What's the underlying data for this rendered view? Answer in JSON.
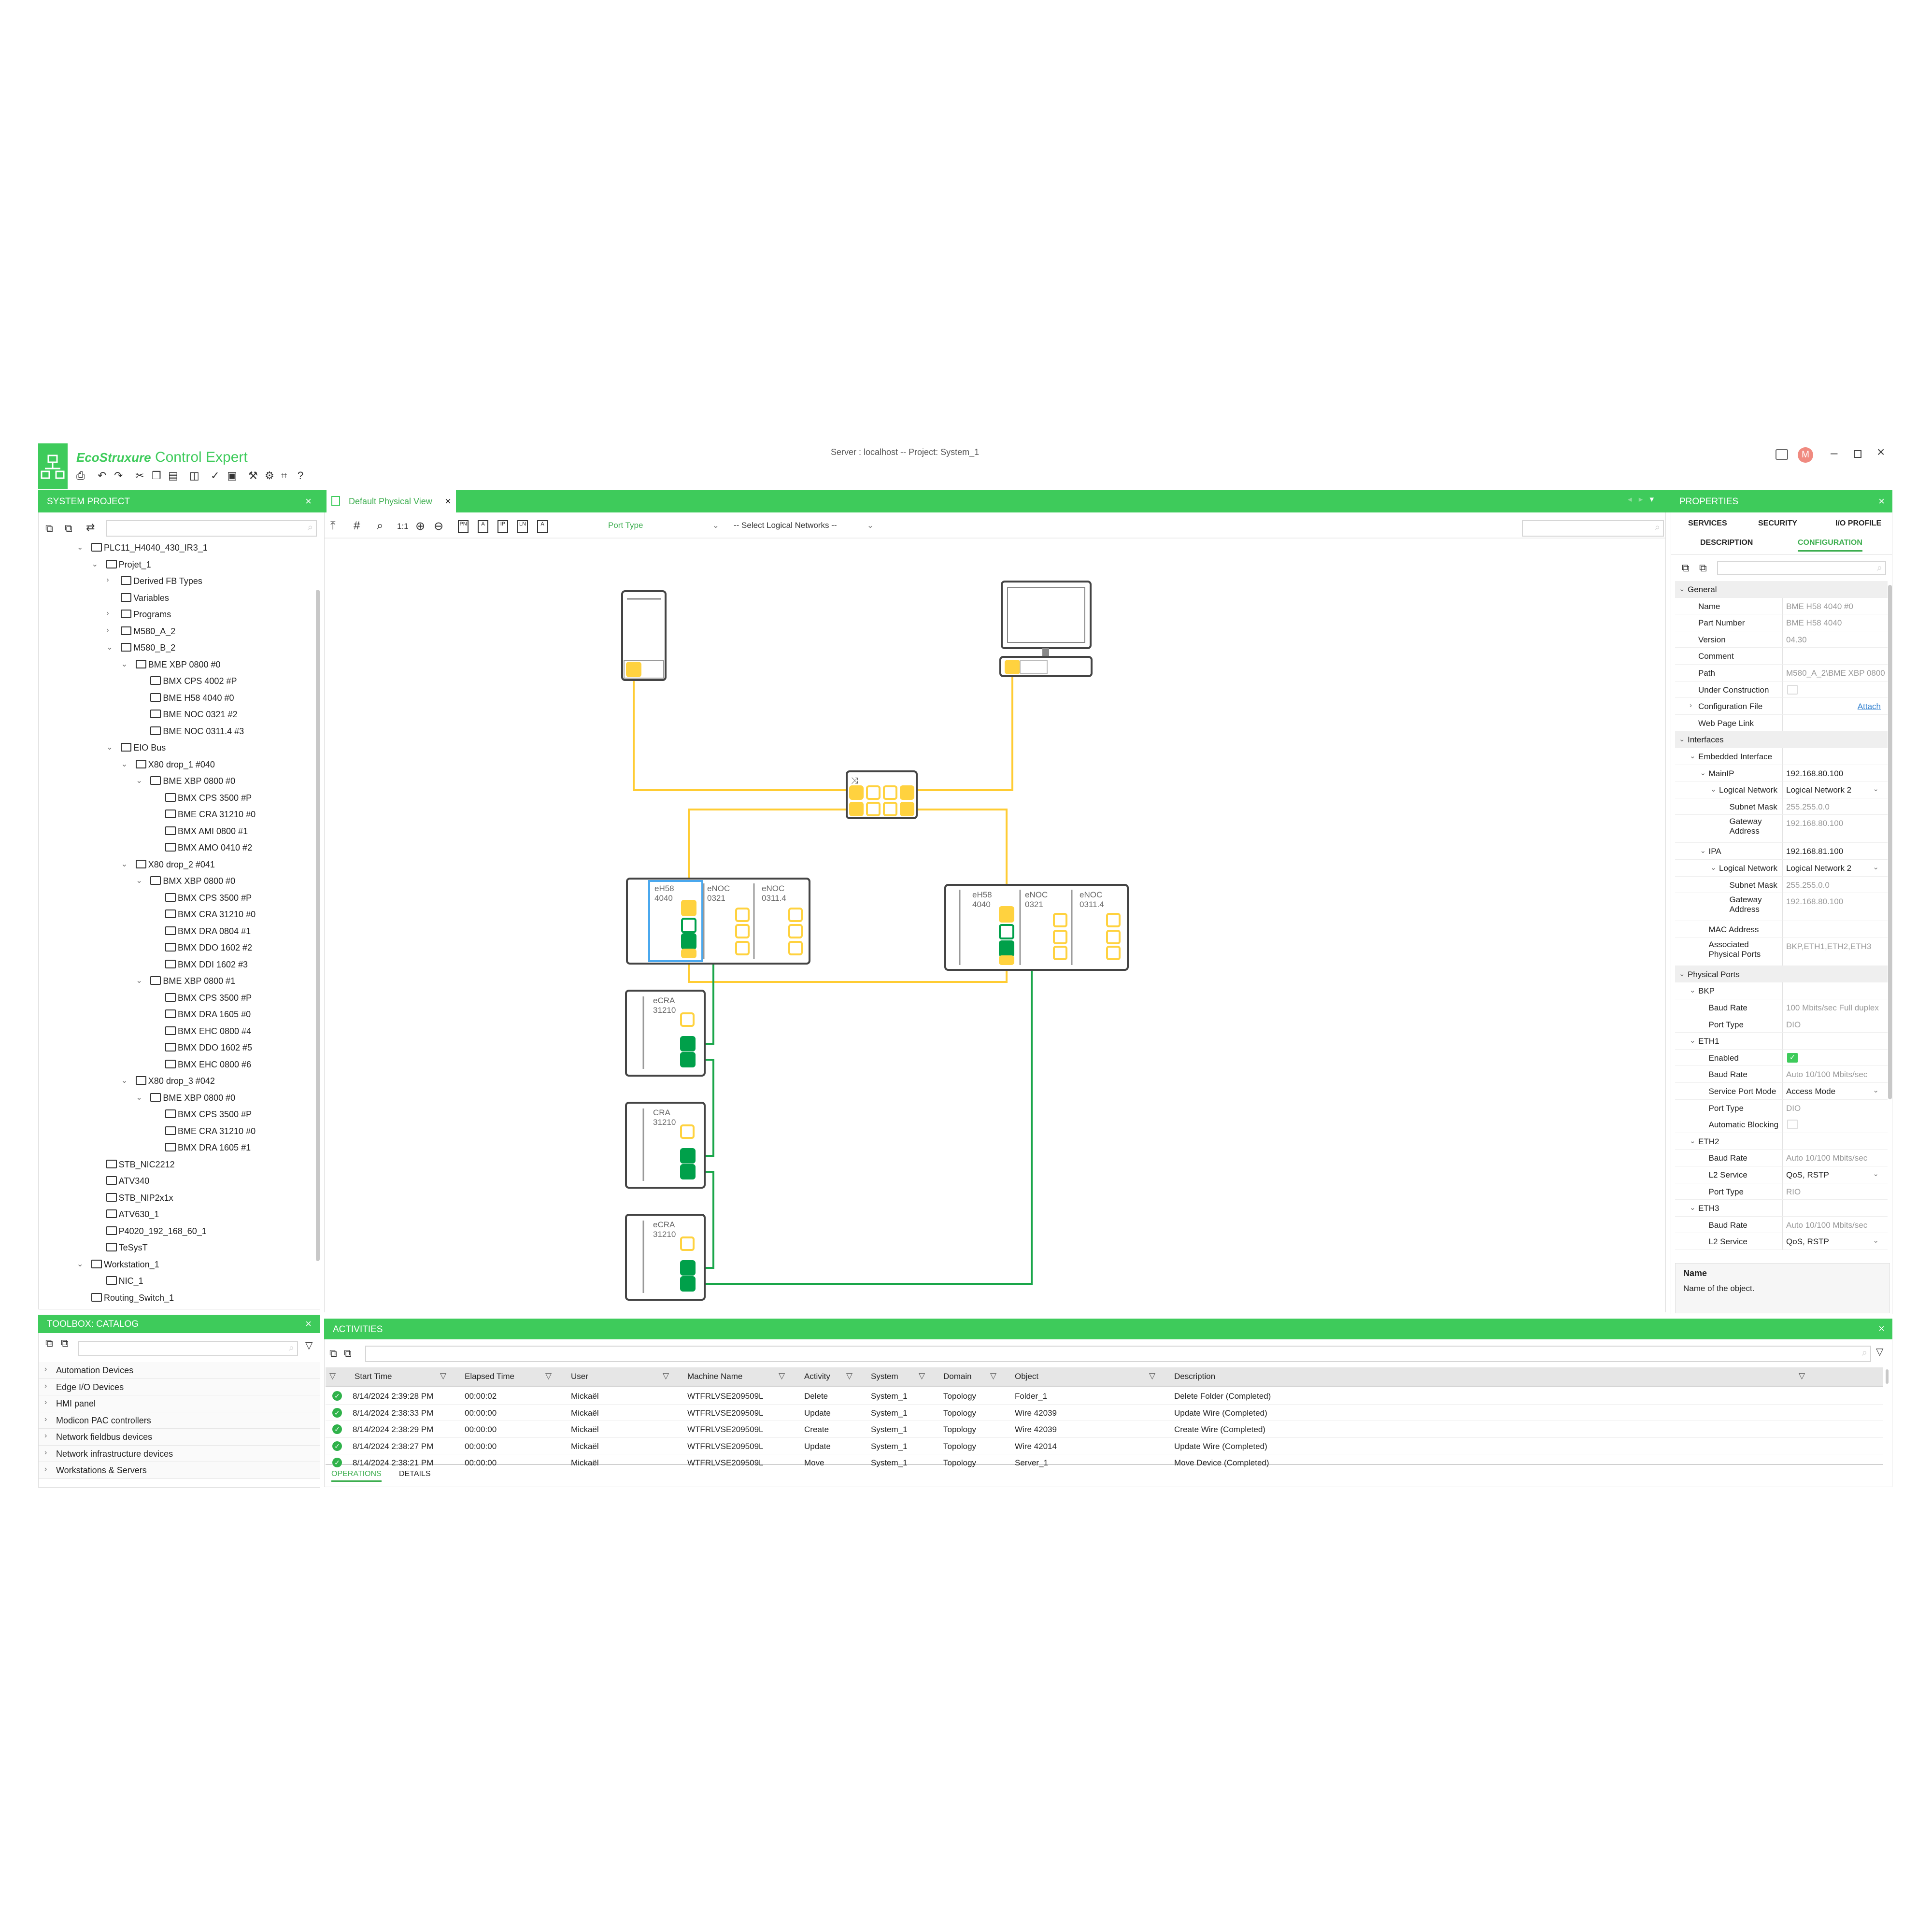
{
  "app": {
    "brand": "EcoStruxure",
    "product": "Control Expert",
    "server_info": "Server : localhost -- Project: System_1",
    "user_initial": "M",
    "colors": {
      "accent": "#3ecb5b",
      "avatar": "#f08a80",
      "port_yellow": "#ffd23f",
      "port_green": "#00a04a",
      "selection_blue": "#4aa8ee"
    },
    "toolbar_icons": [
      "print-icon",
      "undo-icon",
      "redo-icon",
      "cut-icon",
      "copy-icon",
      "paste-icon",
      "layout-icon",
      "check-icon",
      "deploy-icon",
      "tools-icon",
      "settings-icon",
      "fit-icon",
      "help-icon"
    ]
  },
  "system_project": {
    "title": "SYSTEM PROJECT",
    "tree": [
      {
        "level": 0,
        "exp": "v",
        "icon": "folder",
        "label": "PLC11_H4040_430_IR3_1"
      },
      {
        "level": 1,
        "exp": "v",
        "icon": "project",
        "label": "Projet_1"
      },
      {
        "level": 2,
        "exp": ">",
        "icon": "fb",
        "label": "Derived FB Types"
      },
      {
        "level": 2,
        "exp": "",
        "icon": "variables",
        "label": "Variables"
      },
      {
        "level": 2,
        "exp": ">",
        "icon": "programs",
        "label": "Programs"
      },
      {
        "level": 2,
        "exp": ">",
        "icon": "controller",
        "label": "M580_A_2"
      },
      {
        "level": 2,
        "exp": "v",
        "icon": "controller",
        "label": "M580_B_2"
      },
      {
        "level": 3,
        "exp": "v",
        "icon": "rack",
        "label": "BME XBP 0800 #0"
      },
      {
        "level": 4,
        "exp": "",
        "icon": "module",
        "label": "BMX CPS 4002 #P"
      },
      {
        "level": 4,
        "exp": "",
        "icon": "cpu",
        "label": "BME H58 4040 #0"
      },
      {
        "level": 4,
        "exp": "",
        "icon": "cpu",
        "label": "BME NOC 0321 #2"
      },
      {
        "level": 4,
        "exp": "",
        "icon": "cpu",
        "label": "BME NOC 0311.4 #3"
      },
      {
        "level": 2,
        "exp": "v",
        "icon": "bus",
        "label": "EIO Bus"
      },
      {
        "level": 3,
        "exp": "v",
        "icon": "controller",
        "label": "X80 drop_1 #040"
      },
      {
        "level": 4,
        "exp": "v",
        "icon": "rack",
        "label": "BME XBP 0800 #0"
      },
      {
        "level": 5,
        "exp": "",
        "icon": "module",
        "label": "BMX CPS 3500 #P"
      },
      {
        "level": 5,
        "exp": "",
        "icon": "cpu",
        "label": "BME CRA 31210 #0"
      },
      {
        "level": 5,
        "exp": "",
        "icon": "io",
        "label": "BMX AMI 0800 #1"
      },
      {
        "level": 5,
        "exp": "",
        "icon": "io",
        "label": "BMX AMO 0410 #2"
      },
      {
        "level": 3,
        "exp": "v",
        "icon": "controller",
        "label": "X80 drop_2 #041"
      },
      {
        "level": 4,
        "exp": "v",
        "icon": "rack",
        "label": "BMX XBP 0800 #0"
      },
      {
        "level": 5,
        "exp": "",
        "icon": "module",
        "label": "BMX CPS 3500 #P"
      },
      {
        "level": 5,
        "exp": "",
        "icon": "cpu",
        "label": "BMX CRA 31210 #0"
      },
      {
        "level": 5,
        "exp": "",
        "icon": "io",
        "label": "BMX DRA 0804 #1"
      },
      {
        "level": 5,
        "exp": "",
        "icon": "io",
        "label": "BMX DDO 1602 #2"
      },
      {
        "level": 5,
        "exp": "",
        "icon": "io",
        "label": "BMX DDI 1602 #3"
      },
      {
        "level": 4,
        "exp": "v",
        "icon": "rack",
        "label": "BME XBP 0800 #1"
      },
      {
        "level": 5,
        "exp": "",
        "icon": "module",
        "label": "BMX CPS 3500 #P"
      },
      {
        "level": 5,
        "exp": "",
        "icon": "io",
        "label": "BMX DRA 1605 #0"
      },
      {
        "level": 5,
        "exp": "",
        "icon": "io",
        "label": "BMX EHC 0800 #4"
      },
      {
        "level": 5,
        "exp": "",
        "icon": "io",
        "label": "BMX DDO 1602 #5"
      },
      {
        "level": 5,
        "exp": "",
        "icon": "io",
        "label": "BMX EHC 0800 #6"
      },
      {
        "level": 3,
        "exp": "v",
        "icon": "controller",
        "label": "X80 drop_3 #042"
      },
      {
        "level": 4,
        "exp": "v",
        "icon": "rack",
        "label": "BME XBP 0800 #0"
      },
      {
        "level": 5,
        "exp": "",
        "icon": "module",
        "label": "BMX CPS 3500 #P"
      },
      {
        "level": 5,
        "exp": "",
        "icon": "cpu",
        "label": "BME CRA 31210 #0"
      },
      {
        "level": 5,
        "exp": "",
        "icon": "io",
        "label": "BMX DRA 1605 #1"
      },
      {
        "level": 1,
        "exp": "",
        "icon": "device",
        "label": "STB_NIC2212"
      },
      {
        "level": 1,
        "exp": "",
        "icon": "device",
        "label": "ATV340"
      },
      {
        "level": 1,
        "exp": "",
        "icon": "device",
        "label": "STB_NIP2x1x"
      },
      {
        "level": 1,
        "exp": "",
        "icon": "drive",
        "label": "ATV630_1"
      },
      {
        "level": 1,
        "exp": "",
        "icon": "device",
        "label": "P4020_192_168_60_1"
      },
      {
        "level": 1,
        "exp": "",
        "icon": "device",
        "label": "TeSysT"
      },
      {
        "level": 0,
        "exp": "v",
        "icon": "workstation",
        "label": "Workstation_1"
      },
      {
        "level": 1,
        "exp": "",
        "icon": "nic",
        "label": "NIC_1"
      },
      {
        "level": 0,
        "exp": "",
        "icon": "switch",
        "label": "Routing_Switch_1"
      }
    ]
  },
  "toolbox": {
    "title": "TOOLBOX: CATALOG",
    "items": [
      "Automation Devices",
      "Edge I/O Devices",
      "HMI panel",
      "Modicon PAC controllers",
      "Network fieldbus devices",
      "Network infrastructure devices",
      "Workstations & Servers"
    ]
  },
  "editor": {
    "tab_label": "Default Physical View",
    "port_type": "Port Type",
    "logical_networks": "-- Select Logical Networks --",
    "zoom_1to1": "1:1",
    "tool_labels": [
      "PN",
      "A",
      "IP",
      "LN",
      "A"
    ]
  },
  "diagram": {
    "racks": [
      {
        "modules": [
          [
            "eH58",
            "4040"
          ],
          [
            "eNOC",
            "0321"
          ],
          [
            "eNOC",
            "0311.4"
          ]
        ],
        "selected_module": 0
      },
      {
        "modules": [
          [
            "eH58",
            "4040"
          ],
          [
            "eNOC",
            "0321"
          ],
          [
            "eNOC",
            "0311.4"
          ]
        ]
      }
    ],
    "drops": [
      [
        "eCRA",
        "31210"
      ],
      [
        "CRA",
        "31210"
      ],
      [
        "eCRA",
        "31210"
      ]
    ]
  },
  "properties": {
    "title": "PROPERTIES",
    "tabs_row1": [
      "SERVICES",
      "SECURITY",
      "I/O PROFILE"
    ],
    "tabs_row2": [
      "DESCRIPTION",
      "CONFIGURATION"
    ],
    "active_tab": "CONFIGURATION",
    "rows": [
      {
        "sec": true,
        "label": "General",
        "exp": "v"
      },
      {
        "level": 1,
        "label": "Name",
        "value": "BME H58 4040 #0"
      },
      {
        "level": 1,
        "label": "Part Number",
        "value": "BME H58 4040"
      },
      {
        "level": 1,
        "label": "Version",
        "value": "04.30"
      },
      {
        "level": 1,
        "label": "Comment",
        "value": ""
      },
      {
        "level": 1,
        "label": "Path",
        "value": "M580_A_2\\BME XBP 0800"
      },
      {
        "level": 1,
        "label": "Under Construction",
        "checkbox": false
      },
      {
        "level": 1,
        "label": "Configuration File",
        "exp": ">",
        "link": "Attach"
      },
      {
        "level": 1,
        "label": "Web Page Link",
        "value": ""
      },
      {
        "sec": true,
        "label": "Interfaces",
        "exp": "v"
      },
      {
        "level": 1,
        "label": "Embedded Interface",
        "exp": "v"
      },
      {
        "level": 2,
        "label": "MainIP",
        "exp": "v",
        "value": "192.168.80.100",
        "dark": true
      },
      {
        "level": 3,
        "label": "Logical Network",
        "exp": "v",
        "value": "Logical Network 2",
        "dark": true,
        "dropdown": true
      },
      {
        "level": 4,
        "label": "Subnet Mask",
        "value": "255.255.0.0"
      },
      {
        "level": 4,
        "label": "Gateway Address",
        "value": "192.168.80.100",
        "tall": true
      },
      {
        "level": 2,
        "label": "IPA",
        "exp": "v",
        "value": "192.168.81.100",
        "dark": true
      },
      {
        "level": 3,
        "label": "Logical Network",
        "exp": "v",
        "value": "Logical Network 2",
        "dark": true,
        "dropdown": true
      },
      {
        "level": 4,
        "label": "Subnet Mask",
        "value": "255.255.0.0"
      },
      {
        "level": 4,
        "label": "Gateway Address",
        "value": "192.168.80.100",
        "tall": true
      },
      {
        "level": 2,
        "label": "MAC Address",
        "value": ""
      },
      {
        "level": 2,
        "label": "Associated Physical Ports",
        "value": "BKP,ETH1,ETH2,ETH3",
        "tall": true
      },
      {
        "sec": true,
        "label": "Physical Ports",
        "exp": "v"
      },
      {
        "level": 1,
        "label": "BKP",
        "exp": "v"
      },
      {
        "level": 2,
        "label": "Baud Rate",
        "value": "100 Mbits/sec Full duplex"
      },
      {
        "level": 2,
        "label": "Port Type",
        "value": "DIO"
      },
      {
        "level": 1,
        "label": "ETH1",
        "exp": "v"
      },
      {
        "level": 2,
        "label": "Enabled",
        "checkbox": true
      },
      {
        "level": 2,
        "label": "Baud Rate",
        "value": "Auto 10/100 Mbits/sec"
      },
      {
        "level": 2,
        "label": "Service Port Mode",
        "value": "Access Mode",
        "dark": true,
        "dropdown": true
      },
      {
        "level": 2,
        "label": "Port Type",
        "value": "DIO"
      },
      {
        "level": 2,
        "label": "Automatic Blocking",
        "checkbox": false
      },
      {
        "level": 1,
        "label": "ETH2",
        "exp": "v"
      },
      {
        "level": 2,
        "label": "Baud Rate",
        "value": "Auto 10/100 Mbits/sec"
      },
      {
        "level": 2,
        "label": "L2 Service",
        "value": "QoS, RSTP",
        "dark": true,
        "dropdown": true
      },
      {
        "level": 2,
        "label": "Port Type",
        "value": "RIO"
      },
      {
        "level": 1,
        "label": "ETH3",
        "exp": "v"
      },
      {
        "level": 2,
        "label": "Baud Rate",
        "value": "Auto 10/100 Mbits/sec"
      },
      {
        "level": 2,
        "label": "L2 Service",
        "value": "QoS, RSTP",
        "dark": true,
        "dropdown": true
      }
    ],
    "help_title": "Name",
    "help_text": "Name of the object."
  },
  "activities": {
    "title": "ACTIVITIES",
    "columns": [
      "Start Time",
      "Elapsed Time",
      "User",
      "Machine Name",
      "Activity",
      "System",
      "Domain",
      "Object",
      "Description"
    ],
    "rows": [
      {
        "status": "success",
        "cells": [
          "8/14/2024 2:39:28 PM",
          "00:00:02",
          "Mickaël",
          "WTFRLVSE209509L",
          "Delete",
          "System_1",
          "Topology",
          "Folder_1",
          "Delete Folder (Completed)"
        ]
      },
      {
        "status": "success",
        "cells": [
          "8/14/2024 2:38:33 PM",
          "00:00:00",
          "Mickaël",
          "WTFRLVSE209509L",
          "Update",
          "System_1",
          "Topology",
          "Wire 42039",
          "Update Wire (Completed)"
        ]
      },
      {
        "status": "success",
        "cells": [
          "8/14/2024 2:38:29 PM",
          "00:00:00",
          "Mickaël",
          "WTFRLVSE209509L",
          "Create",
          "System_1",
          "Topology",
          "Wire 42039",
          "Create Wire (Completed)"
        ]
      },
      {
        "status": "success",
        "cells": [
          "8/14/2024 2:38:27 PM",
          "00:00:00",
          "Mickaël",
          "WTFRLVSE209509L",
          "Update",
          "System_1",
          "Topology",
          "Wire 42014",
          "Update Wire (Completed)"
        ]
      },
      {
        "status": "success",
        "cells": [
          "8/14/2024 2:38:21 PM",
          "00:00:00",
          "Mickaël",
          "WTFRLVSE209509L",
          "Move",
          "System_1",
          "Topology",
          "Server_1",
          "Move Device (Completed)"
        ]
      }
    ],
    "tabs": [
      "OPERATIONS",
      "DETAILS"
    ],
    "active_tab": "OPERATIONS"
  }
}
